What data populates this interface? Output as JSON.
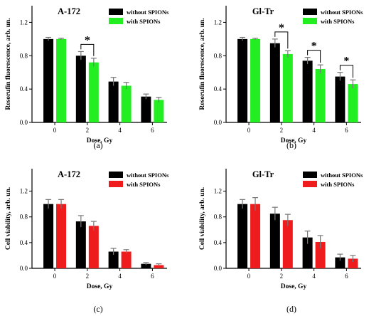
{
  "colors": {
    "without": "#000000",
    "with_green": "#22ee22",
    "with_red": "#ee1c1c",
    "error": "#777777"
  },
  "chart_data": [
    {
      "type": "bar",
      "panel": "(a)",
      "title": "A-172",
      "xlabel": "Dose, Gy",
      "ylabel": "Resorufin fluorescence, arb. un.",
      "categories": [
        "0",
        "2",
        "4",
        "6"
      ],
      "ylim": [
        0,
        1.4
      ],
      "yticks": [
        "0.0",
        "0.4",
        "0.8",
        "1.2"
      ],
      "series": [
        {
          "name": "without SPIONs",
          "color": "#000000",
          "values": [
            1.0,
            0.8,
            0.49,
            0.31
          ],
          "errors": [
            0.02,
            0.05,
            0.05,
            0.03
          ]
        },
        {
          "name": "with SPIONs",
          "color": "#22ee22",
          "values": [
            1.0,
            0.72,
            0.44,
            0.27
          ],
          "errors": [
            0.01,
            0.05,
            0.04,
            0.03
          ]
        }
      ],
      "significance": [
        {
          "category": 1,
          "label": "*"
        }
      ],
      "legend": "top-right"
    },
    {
      "type": "bar",
      "panel": "(b)",
      "title": "Gl-Tr",
      "xlabel": "Dose, Gy",
      "ylabel": "Resorufin fluorescence, arb. un.",
      "categories": [
        "0",
        "2",
        "4",
        "6"
      ],
      "ylim": [
        0,
        1.4
      ],
      "yticks": [
        "0.0",
        "0.4",
        "0.8",
        "1.2"
      ],
      "series": [
        {
          "name": "without SPIONs",
          "color": "#000000",
          "values": [
            1.0,
            0.95,
            0.74,
            0.55
          ],
          "errors": [
            0.02,
            0.05,
            0.04,
            0.05
          ]
        },
        {
          "name": "with SPIONs",
          "color": "#22ee22",
          "values": [
            1.0,
            0.82,
            0.64,
            0.46
          ],
          "errors": [
            0.01,
            0.04,
            0.05,
            0.05
          ]
        }
      ],
      "significance": [
        {
          "category": 1,
          "label": "*"
        },
        {
          "category": 2,
          "label": "*"
        },
        {
          "category": 3,
          "label": "*"
        }
      ],
      "legend": "top-right"
    },
    {
      "type": "bar",
      "panel": "(c)",
      "title": "A-172",
      "xlabel": "Dose, Gy",
      "ylabel": "Cell viability, arb. un.",
      "categories": [
        "0",
        "2",
        "4",
        "6"
      ],
      "ylim": [
        0,
        1.55
      ],
      "yticks": [
        "0.0",
        "0.4",
        "0.8",
        "1.2"
      ],
      "series": [
        {
          "name": "without SPIONs",
          "color": "#000000",
          "values": [
            1.0,
            0.73,
            0.26,
            0.07
          ],
          "errors": [
            0.07,
            0.09,
            0.05,
            0.02
          ]
        },
        {
          "name": "with SPIONs",
          "color": "#ee1c1c",
          "values": [
            1.0,
            0.66,
            0.26,
            0.05
          ],
          "errors": [
            0.07,
            0.07,
            0.03,
            0.02
          ]
        }
      ],
      "significance": [],
      "legend": "top-right"
    },
    {
      "type": "bar",
      "panel": "(d)",
      "title": "Gl-Tr",
      "xlabel": "Dose, Gy",
      "ylabel": "Cell viability, arb. un.",
      "categories": [
        "0",
        "2",
        "4",
        "6"
      ],
      "ylim": [
        0,
        1.55
      ],
      "yticks": [
        "0.0",
        "0.4",
        "0.8",
        "1.2"
      ],
      "series": [
        {
          "name": "without SPIONs",
          "color": "#000000",
          "values": [
            1.0,
            0.85,
            0.48,
            0.17
          ],
          "errors": [
            0.07,
            0.1,
            0.1,
            0.05
          ]
        },
        {
          "name": "with SPIONs",
          "color": "#ee1c1c",
          "values": [
            1.0,
            0.75,
            0.41,
            0.15
          ],
          "errors": [
            0.1,
            0.09,
            0.1,
            0.05
          ]
        }
      ],
      "significance": [],
      "legend": "top-right"
    }
  ]
}
